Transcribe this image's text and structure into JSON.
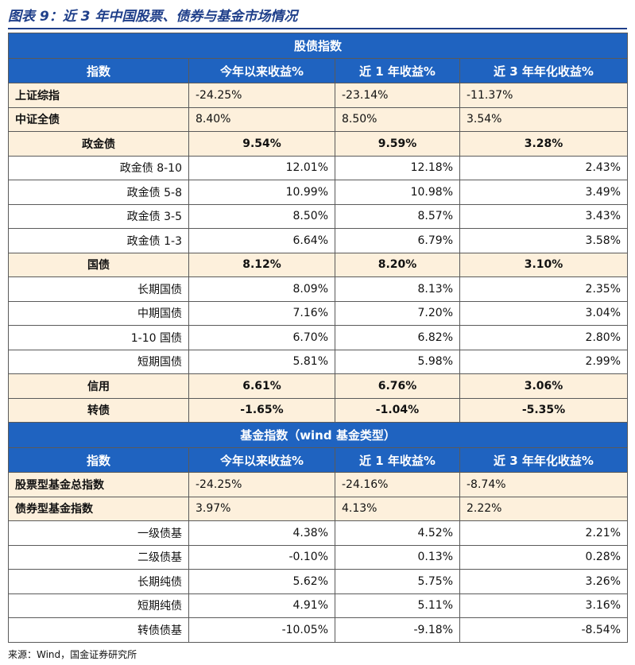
{
  "caption": "图表 9：近 3 年中国股票、债券与基金市场情况",
  "source": "来源：Wind，国金证券研究所",
  "colors": {
    "header_bg": "#1f63c0",
    "shade_bg": "#fdf0dc",
    "caption": "#1f3f8a"
  },
  "sections": [
    {
      "title": "股债指数",
      "headers": [
        "指数",
        "今年以来收益%",
        "近 1 年收益%",
        "近 3 年年化收益%"
      ],
      "rows": [
        {
          "label": "上证综指",
          "values": [
            "-24.25%",
            "-23.14%",
            "-11.37%"
          ],
          "style": "top",
          "shade": true
        },
        {
          "label": "中证全债",
          "values": [
            "8.40%",
            "8.50%",
            "3.54%"
          ],
          "style": "top",
          "shade": true
        },
        {
          "label": "政金债",
          "values": [
            "9.54%",
            "9.59%",
            "3.28%"
          ],
          "style": "group",
          "shade": true
        },
        {
          "label": "政金债 8-10",
          "values": [
            "12.01%",
            "12.18%",
            "2.43%"
          ],
          "style": "sub",
          "shade": false
        },
        {
          "label": "政金债 5-8",
          "values": [
            "10.99%",
            "10.98%",
            "3.49%"
          ],
          "style": "sub",
          "shade": false
        },
        {
          "label": "政金债 3-5",
          "values": [
            "8.50%",
            "8.57%",
            "3.43%"
          ],
          "style": "sub",
          "shade": false
        },
        {
          "label": "政金债 1-3",
          "values": [
            "6.64%",
            "6.79%",
            "3.58%"
          ],
          "style": "sub",
          "shade": false
        },
        {
          "label": "国债",
          "values": [
            "8.12%",
            "8.20%",
            "3.10%"
          ],
          "style": "group",
          "shade": true
        },
        {
          "label": "长期国债",
          "values": [
            "8.09%",
            "8.13%",
            "2.35%"
          ],
          "style": "sub",
          "shade": false
        },
        {
          "label": "中期国债",
          "values": [
            "7.16%",
            "7.20%",
            "3.04%"
          ],
          "style": "sub",
          "shade": false
        },
        {
          "label": "1-10 国债",
          "values": [
            "6.70%",
            "6.82%",
            "2.80%"
          ],
          "style": "sub",
          "shade": false
        },
        {
          "label": "短期国债",
          "values": [
            "5.81%",
            "5.98%",
            "2.99%"
          ],
          "style": "sub",
          "shade": false
        },
        {
          "label": "信用",
          "values": [
            "6.61%",
            "6.76%",
            "3.06%"
          ],
          "style": "group",
          "shade": true
        },
        {
          "label": "转债",
          "values": [
            "-1.65%",
            "-1.04%",
            "-5.35%"
          ],
          "style": "group",
          "shade": true
        }
      ]
    },
    {
      "title": "基金指数（wind 基金类型）",
      "headers": [
        "指数",
        "今年以来收益%",
        "近 1 年收益%",
        "近 3 年年化收益%"
      ],
      "rows": [
        {
          "label": "股票型基金总指数",
          "values": [
            "-24.25%",
            "-24.16%",
            "-8.74%"
          ],
          "style": "top",
          "shade": true
        },
        {
          "label": "债券型基金指数",
          "values": [
            "3.97%",
            "4.13%",
            "2.22%"
          ],
          "style": "top",
          "shade": true
        },
        {
          "label": "一级债基",
          "values": [
            "4.38%",
            "4.52%",
            "2.21%"
          ],
          "style": "sub",
          "shade": false
        },
        {
          "label": "二级债基",
          "values": [
            "-0.10%",
            "0.13%",
            "0.28%"
          ],
          "style": "sub",
          "shade": false
        },
        {
          "label": "长期纯债",
          "values": [
            "5.62%",
            "5.75%",
            "3.26%"
          ],
          "style": "sub",
          "shade": false
        },
        {
          "label": "短期纯债",
          "values": [
            "4.91%",
            "5.11%",
            "3.16%"
          ],
          "style": "sub",
          "shade": false
        },
        {
          "label": "转债债基",
          "values": [
            "-10.05%",
            "-9.18%",
            "-8.54%"
          ],
          "style": "sub",
          "shade": false
        }
      ]
    }
  ]
}
